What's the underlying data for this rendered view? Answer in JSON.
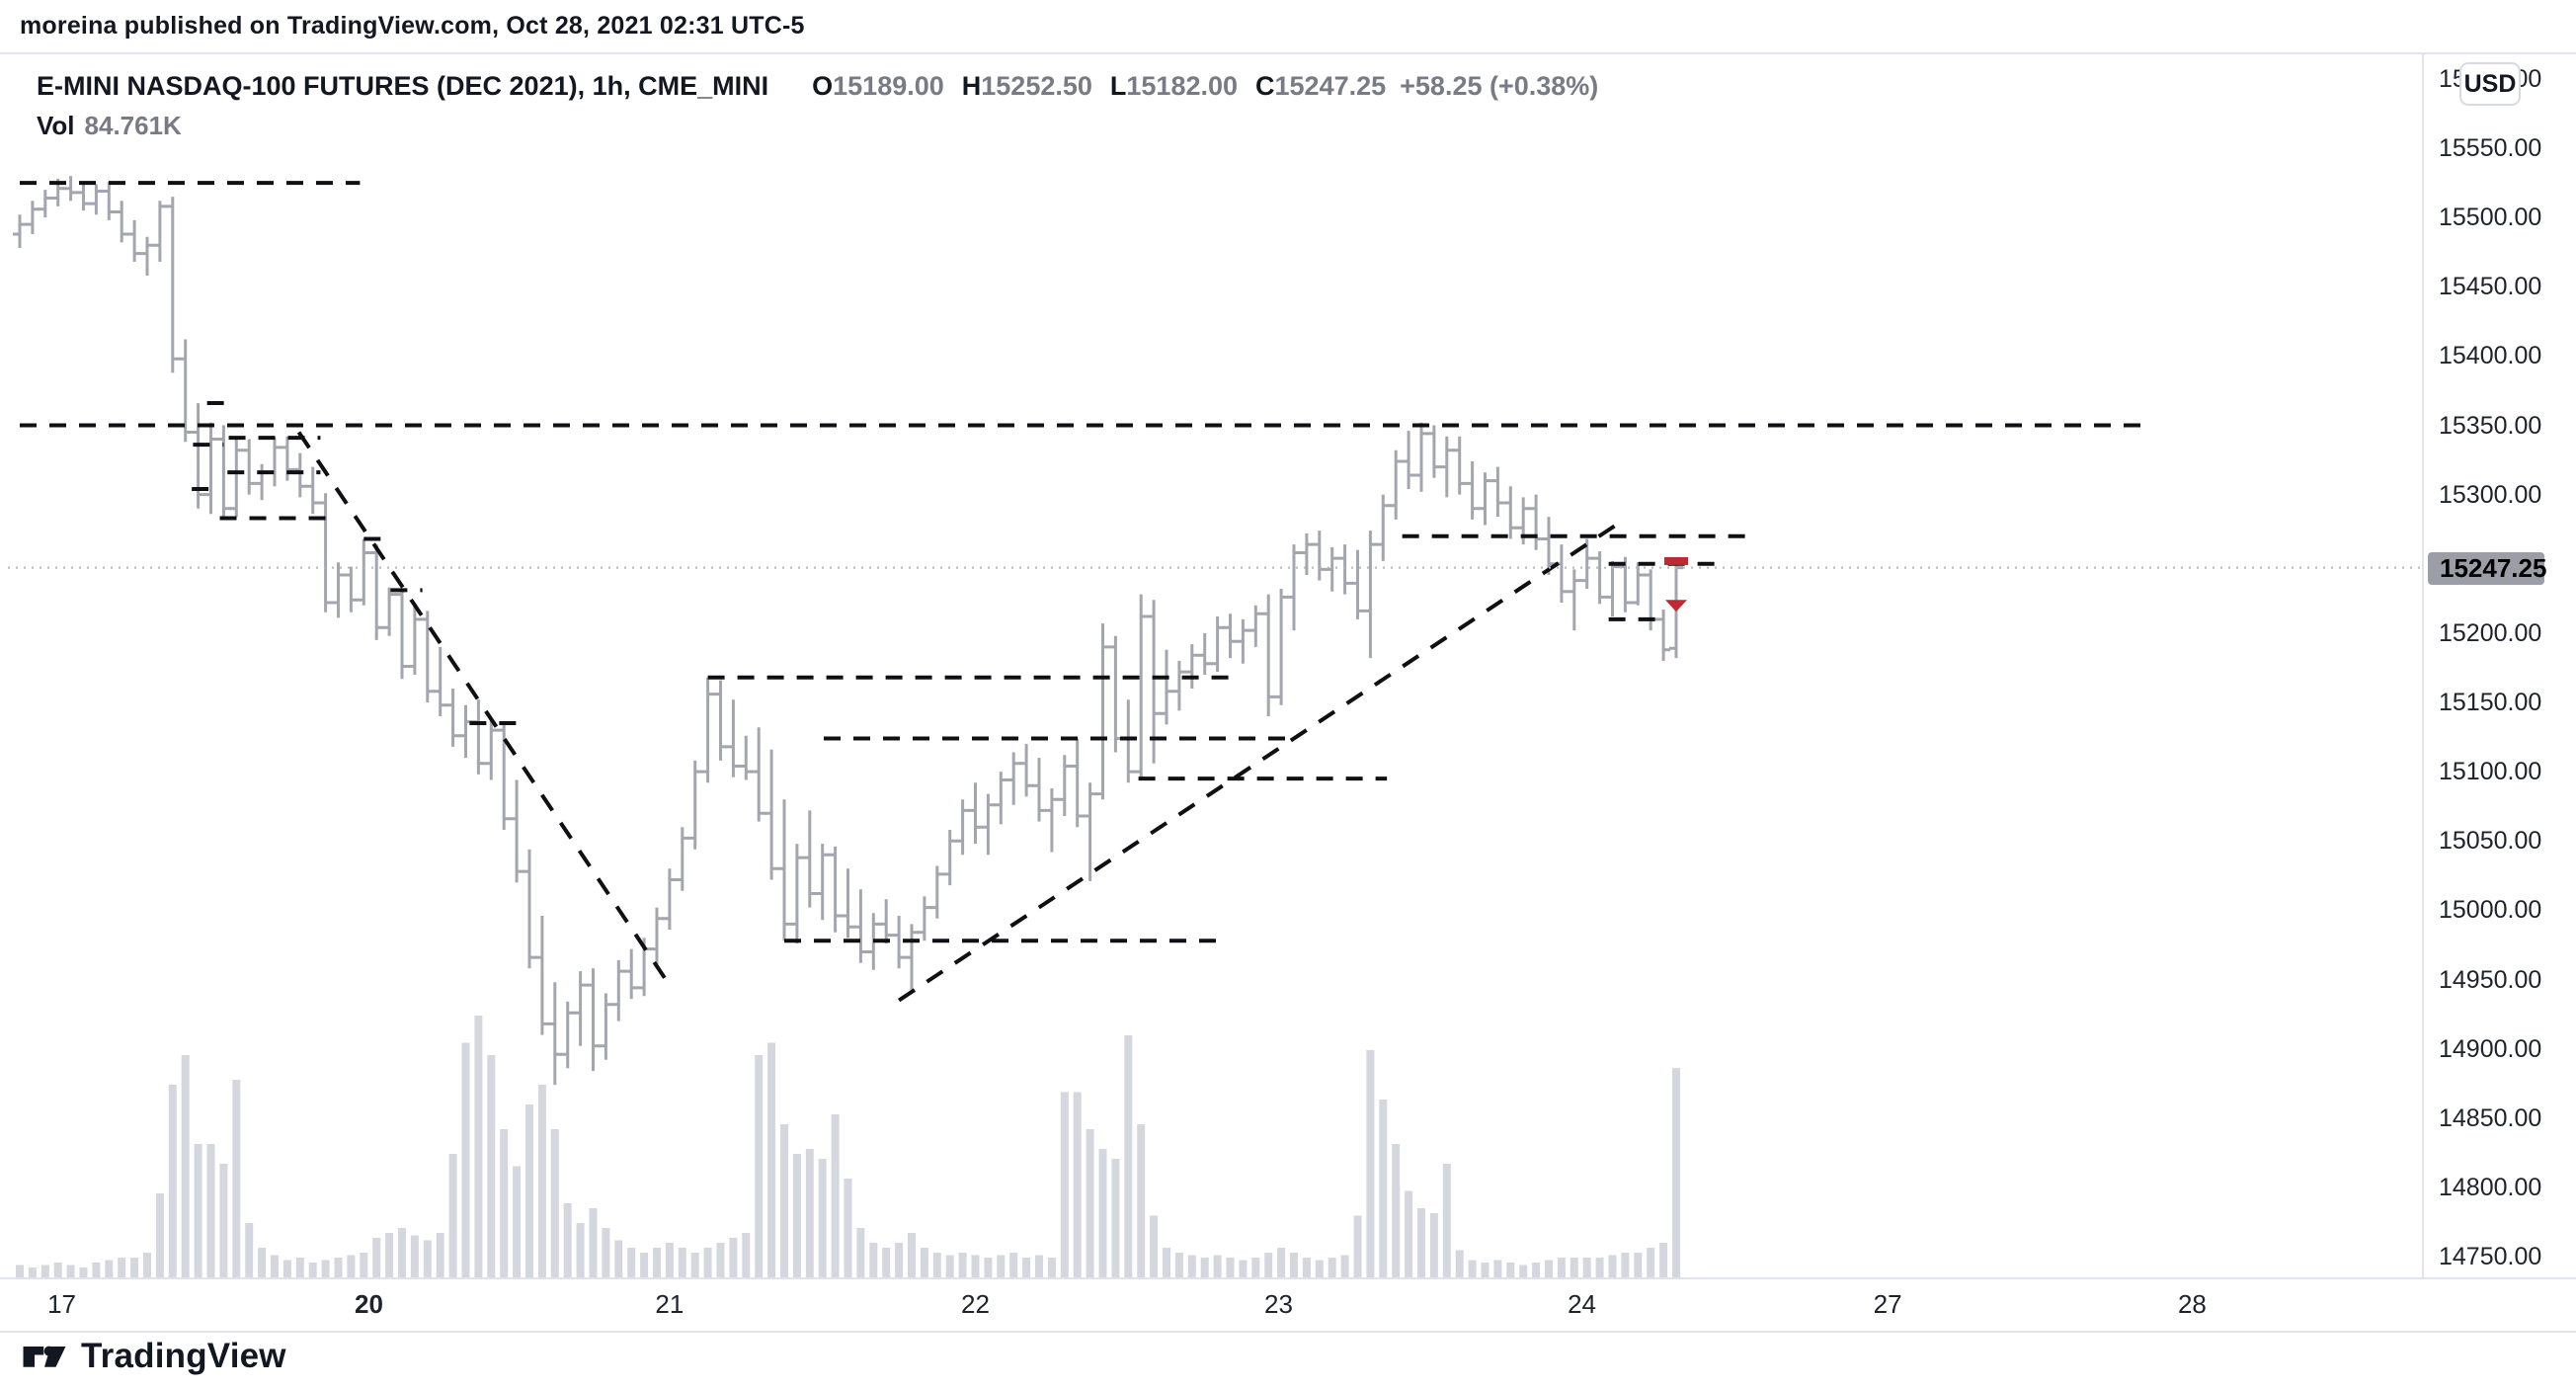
{
  "header": {
    "publisher": "moreina published on TradingView.com, Oct 28, 2021 02:31 UTC-5"
  },
  "title": {
    "symbol": "E-MINI NASDAQ-100 FUTURES (DEC 2021), 1h, CME_MINI",
    "ohlc": [
      {
        "k": "O",
        "v": "15189.00"
      },
      {
        "k": "H",
        "v": "15252.50"
      },
      {
        "k": "L",
        "v": "15182.00"
      },
      {
        "k": "C",
        "v": "15247.25"
      }
    ],
    "change": "+58.25 (+0.38%)",
    "vol_label": "Vol",
    "vol_value": "84.761K"
  },
  "price_scale": {
    "currency": "USD",
    "last_price": "15247.25",
    "ticks": [
      {
        "label": "15600.00",
        "price": 15600
      },
      {
        "label": "15550.00",
        "price": 15550
      },
      {
        "label": "15500.00",
        "price": 15500
      },
      {
        "label": "15450.00",
        "price": 15450
      },
      {
        "label": "15400.00",
        "price": 15400
      },
      {
        "label": "15350.00",
        "price": 15350
      },
      {
        "label": "15300.00",
        "price": 15300
      },
      {
        "label": "15200.00",
        "price": 15200
      },
      {
        "label": "15150.00",
        "price": 15150
      },
      {
        "label": "15100.00",
        "price": 15100
      },
      {
        "label": "15050.00",
        "price": 15050
      },
      {
        "label": "15000.00",
        "price": 15000
      },
      {
        "label": "14950.00",
        "price": 14950
      },
      {
        "label": "14900.00",
        "price": 14900
      },
      {
        "label": "14850.00",
        "price": 14850
      },
      {
        "label": "14800.00",
        "price": 14800
      },
      {
        "label": "14750.00",
        "price": 14750
      }
    ]
  },
  "time_scale": {
    "ticks": [
      {
        "label": "17",
        "slot": 3.3,
        "bold": false
      },
      {
        "label": "20",
        "slot": 27.4,
        "bold": true
      },
      {
        "label": "21",
        "slot": 51.0,
        "bold": false
      },
      {
        "label": "22",
        "slot": 75.0,
        "bold": false
      },
      {
        "label": "23",
        "slot": 98.8,
        "bold": false
      },
      {
        "label": "24",
        "slot": 122.6,
        "bold": false
      },
      {
        "label": "27",
        "slot": 146.6,
        "bold": false
      },
      {
        "label": "28",
        "slot": 170.5,
        "bold": false
      }
    ]
  },
  "footer": {
    "brand": "TradingView"
  },
  "colors": {
    "text_dark": "#131722",
    "text_gray": "#787b86",
    "bar": "#a3a6af",
    "volume": "#d5d7de",
    "annotation": "#101014",
    "price_dotted": "#b4b7bf",
    "badge_bg": "#9b9ea7",
    "marker_red": "#bf2a32",
    "border": "#e0e3eb"
  },
  "chart_data": {
    "type": "bar",
    "title": "E-MINI NASDAQ-100 FUTURES (DEC 2021)",
    "interval": "1h",
    "exchange": "CME_MINI",
    "ylabel": "price (USD)",
    "ylim": [
      14720,
      15620
    ],
    "visible_slots": 189,
    "last_price_line": 15247.25,
    "bars_ohlcv": [
      [
        15488,
        15502,
        15478,
        15495,
        5
      ],
      [
        15495,
        15512,
        15488,
        15506,
        4
      ],
      [
        15506,
        15520,
        15500,
        15514,
        5
      ],
      [
        15514,
        15528,
        15508,
        15521,
        6
      ],
      [
        15521,
        15530,
        15512,
        15518,
        5
      ],
      [
        15518,
        15526,
        15505,
        15510,
        4
      ],
      [
        15510,
        15524,
        15502,
        15519,
        6
      ],
      [
        15519,
        15526,
        15498,
        15504,
        7
      ],
      [
        15504,
        15512,
        15482,
        15488,
        8
      ],
      [
        15488,
        15498,
        15468,
        15474,
        8
      ],
      [
        15474,
        15486,
        15458,
        15480,
        10
      ],
      [
        15480,
        15512,
        15468,
        15508,
        34
      ],
      [
        15508,
        15515,
        15388,
        15398,
        78
      ],
      [
        15398,
        15412,
        15338,
        15345,
        90
      ],
      [
        15345,
        15366,
        15290,
        15300,
        54
      ],
      [
        15300,
        15352,
        15286,
        15340,
        54
      ],
      [
        15340,
        15350,
        15282,
        15290,
        46
      ],
      [
        15290,
        15341,
        15284,
        15332,
        80
      ],
      [
        15332,
        15340,
        15300,
        15308,
        22
      ],
      [
        15308,
        15322,
        15296,
        15316,
        12
      ],
      [
        15316,
        15341,
        15306,
        15334,
        9
      ],
      [
        15334,
        15342,
        15310,
        15318,
        7
      ],
      [
        15318,
        15330,
        15298,
        15306,
        8
      ],
      [
        15306,
        15320,
        15286,
        15294,
        6
      ],
      [
        15294,
        15301,
        15215,
        15222,
        7
      ],
      [
        15222,
        15251,
        15211,
        15242,
        8
      ],
      [
        15242,
        15248,
        15215,
        15224,
        9
      ],
      [
        15224,
        15268,
        15220,
        15258,
        10
      ],
      [
        15258,
        15264,
        15195,
        15204,
        16
      ],
      [
        15204,
        15233,
        15198,
        15228,
        18
      ],
      [
        15228,
        15232,
        15167,
        15176,
        20
      ],
      [
        15176,
        15220,
        15170,
        15210,
        17
      ],
      [
        15210,
        15216,
        15150,
        15158,
        15
      ],
      [
        15158,
        15190,
        15140,
        15148,
        18
      ],
      [
        15148,
        15160,
        15118,
        15126,
        50
      ],
      [
        15126,
        15148,
        15110,
        15136,
        95
      ],
      [
        15136,
        15152,
        15098,
        15106,
        106
      ],
      [
        15106,
        15138,
        15094,
        15130,
        90
      ],
      [
        15130,
        15136,
        15058,
        15066,
        60
      ],
      [
        15066,
        15094,
        15020,
        15028,
        45
      ],
      [
        15028,
        15044,
        14958,
        14966,
        70
      ],
      [
        14966,
        14996,
        14910,
        14918,
        78
      ],
      [
        14918,
        14948,
        14874,
        14896,
        60
      ],
      [
        14896,
        14934,
        14886,
        14926,
        30
      ],
      [
        14926,
        14956,
        14902,
        14946,
        22
      ],
      [
        14946,
        14958,
        14884,
        14902,
        28
      ],
      [
        14902,
        14940,
        14892,
        14932,
        20
      ],
      [
        14932,
        14964,
        14920,
        14956,
        15
      ],
      [
        14956,
        14972,
        14936,
        14944,
        12
      ],
      [
        14944,
        14980,
        14938,
        14972,
        10
      ],
      [
        14972,
        15002,
        14958,
        14994,
        12
      ],
      [
        14994,
        15030,
        14986,
        15022,
        14
      ],
      [
        15022,
        15060,
        15014,
        15052,
        12
      ],
      [
        15052,
        15108,
        15044,
        15100,
        10
      ],
      [
        15100,
        15168,
        15092,
        15156,
        12
      ],
      [
        15156,
        15166,
        15108,
        15118,
        14
      ],
      [
        15118,
        15152,
        15096,
        15104,
        16
      ],
      [
        15104,
        15126,
        15094,
        15100,
        18
      ],
      [
        15100,
        15132,
        15064,
        15070,
        90
      ],
      [
        15070,
        15116,
        15022,
        15030,
        95
      ],
      [
        15030,
        15080,
        14978,
        14990,
        62
      ],
      [
        14990,
        15048,
        14976,
        15038,
        50
      ],
      [
        15038,
        15072,
        15002,
        15012,
        52
      ],
      [
        15012,
        15048,
        14993,
        15040,
        48
      ],
      [
        15040,
        15046,
        14984,
        14996,
        66
      ],
      [
        14996,
        15030,
        14980,
        14988,
        40
      ],
      [
        14988,
        15015,
        14962,
        14970,
        20
      ],
      [
        14970,
        14998,
        14957,
        14990,
        14
      ],
      [
        14990,
        15008,
        14976,
        14982,
        12
      ],
      [
        14982,
        14996,
        14958,
        14966,
        14
      ],
      [
        14966,
        14990,
        14940,
        14984,
        18
      ],
      [
        14984,
        15010,
        14978,
        15002,
        12
      ],
      [
        15002,
        15032,
        14994,
        15026,
        10
      ],
      [
        15026,
        15058,
        15018,
        15050,
        9
      ],
      [
        15050,
        15080,
        15040,
        15072,
        10
      ],
      [
        15072,
        15092,
        15048,
        15060,
        9
      ],
      [
        15060,
        15084,
        15040,
        15076,
        8
      ],
      [
        15076,
        15100,
        15062,
        15094,
        9
      ],
      [
        15094,
        15114,
        15076,
        15106,
        10
      ],
      [
        15106,
        15120,
        15082,
        15090,
        8
      ],
      [
        15090,
        15110,
        15064,
        15072,
        9
      ],
      [
        15072,
        15088,
        15042,
        15080,
        8
      ],
      [
        15080,
        15112,
        15068,
        15104,
        75
      ],
      [
        15104,
        15124,
        15060,
        15068,
        75
      ],
      [
        15068,
        15092,
        15021,
        15084,
        60
      ],
      [
        15084,
        15207,
        15080,
        15190,
        52
      ],
      [
        15190,
        15198,
        15114,
        15124,
        48
      ],
      [
        15124,
        15152,
        15092,
        15100,
        98
      ],
      [
        15100,
        15228,
        15094,
        15212,
        62
      ],
      [
        15212,
        15224,
        15106,
        15142,
        25
      ],
      [
        15142,
        15188,
        15134,
        15158,
        12
      ],
      [
        15158,
        15180,
        15144,
        15172,
        10
      ],
      [
        15172,
        15192,
        15160,
        15184,
        9
      ],
      [
        15184,
        15200,
        15170,
        15178,
        8
      ],
      [
        15178,
        15212,
        15172,
        15204,
        9
      ],
      [
        15204,
        15214,
        15182,
        15194,
        8
      ],
      [
        15194,
        15210,
        15178,
        15202,
        7
      ],
      [
        15202,
        15220,
        15190,
        15214,
        8
      ],
      [
        15214,
        15228,
        15140,
        15154,
        10
      ],
      [
        15154,
        15232,
        15148,
        15226,
        12
      ],
      [
        15226,
        15264,
        15202,
        15258,
        10
      ],
      [
        15258,
        15272,
        15242,
        15264,
        8
      ],
      [
        15264,
        15274,
        15238,
        15246,
        7
      ],
      [
        15246,
        15262,
        15230,
        15254,
        8
      ],
      [
        15254,
        15264,
        15228,
        15236,
        9
      ],
      [
        15236,
        15260,
        15210,
        15216,
        25
      ],
      [
        15216,
        15274,
        15182,
        15264,
        92
      ],
      [
        15264,
        15300,
        15252,
        15292,
        72
      ],
      [
        15292,
        15332,
        15282,
        15324,
        54
      ],
      [
        15324,
        15346,
        15304,
        15314,
        35
      ],
      [
        15314,
        15352,
        15302,
        15344,
        28
      ],
      [
        15344,
        15350,
        15312,
        15320,
        26
      ],
      [
        15320,
        15342,
        15298,
        15332,
        46
      ],
      [
        15332,
        15342,
        15300,
        15308,
        11
      ],
      [
        15308,
        15324,
        15282,
        15290,
        7
      ],
      [
        15290,
        15316,
        15278,
        15310,
        6
      ],
      [
        15310,
        15320,
        15284,
        15294,
        7
      ],
      [
        15294,
        15306,
        15268,
        15276,
        6
      ],
      [
        15276,
        15298,
        15264,
        15290,
        5
      ],
      [
        15290,
        15300,
        15260,
        15268,
        6
      ],
      [
        15268,
        15284,
        15242,
        15250,
        7
      ],
      [
        15250,
        15264,
        15222,
        15230,
        8
      ],
      [
        15230,
        15246,
        15202,
        15238,
        8
      ],
      [
        15238,
        15268,
        15232,
        15254,
        8
      ],
      [
        15254,
        15259,
        15221,
        15226,
        8
      ],
      [
        15226,
        15252,
        15212,
        15248,
        9
      ],
      [
        15248,
        15255,
        15215,
        15222,
        10
      ],
      [
        15222,
        15251,
        15220,
        15242,
        10
      ],
      [
        15242,
        15246,
        15202,
        15210,
        12
      ],
      [
        15210,
        15217,
        15180,
        15188,
        14
      ],
      [
        15189,
        15252.5,
        15182,
        15247.25,
        84.761
      ]
    ],
    "level_lines": [
      {
        "s1": 0,
        "s2": 26.7,
        "price": 15525
      },
      {
        "s1": 0,
        "s2": 167.4,
        "price": 15350
      },
      {
        "s1": 14.7,
        "s2": 16.9,
        "price": 15366
      },
      {
        "s1": 13.6,
        "s2": 16.0,
        "price": 15336
      },
      {
        "s1": 13.5,
        "s2": 15.7,
        "price": 15304
      },
      {
        "s1": 16.4,
        "s2": 23.6,
        "price": 15341
      },
      {
        "s1": 16.3,
        "s2": 23.6,
        "price": 15316
      },
      {
        "s1": 15.7,
        "s2": 24.6,
        "price": 15283
      },
      {
        "s1": 27.0,
        "s2": 29.3,
        "price": 15268
      },
      {
        "s1": 29.1,
        "s2": 31.6,
        "price": 15231
      },
      {
        "s1": 35.3,
        "s2": 39.7,
        "price": 15135
      },
      {
        "s1": 54.0,
        "s2": 95.0,
        "price": 15168
      },
      {
        "s1": 63.1,
        "s2": 100.2,
        "price": 15124
      },
      {
        "s1": 87.8,
        "s2": 107.3,
        "price": 15095
      },
      {
        "s1": 60.0,
        "s2": 94.0,
        "price": 14978
      },
      {
        "s1": 108.5,
        "s2": 136.3,
        "price": 15270
      },
      {
        "s1": 124.7,
        "s2": 133.1,
        "price": 15250
      },
      {
        "s1": 124.7,
        "s2": 128.9,
        "price": 15210
      }
    ],
    "trendlines": [
      {
        "s1": 21.9,
        "p1": 15345,
        "s2": 50.7,
        "p2": 14950
      },
      {
        "s1": 69.0,
        "p1": 14935,
        "s2": 125.6,
        "p2": 15280
      }
    ],
    "markers": [
      {
        "type": "dash",
        "slot": 130,
        "price": 15252
      },
      {
        "type": "triangle-down",
        "slot": 130,
        "price": 15224
      }
    ]
  }
}
